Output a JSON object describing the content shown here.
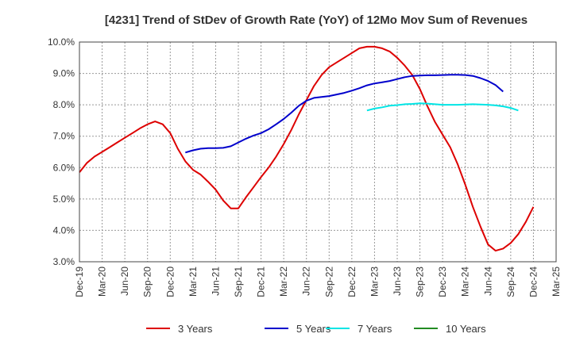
{
  "chart_data": {
    "type": "line",
    "title": "[4231]  Trend of StDev of Growth Rate (YoY) of 12Mo Mov Sum of Revenues",
    "xlabel": "",
    "ylabel": "",
    "ylim": [
      3.0,
      10.0
    ],
    "y_ticks": [
      "3.0%",
      "4.0%",
      "5.0%",
      "6.0%",
      "7.0%",
      "8.0%",
      "9.0%",
      "10.0%"
    ],
    "x_ticks": [
      "Dec-19",
      "Mar-20",
      "Jun-20",
      "Sep-20",
      "Dec-20",
      "Mar-21",
      "Jun-21",
      "Sep-21",
      "Dec-21",
      "Mar-22",
      "Jun-22",
      "Sep-22",
      "Dec-22",
      "Mar-23",
      "Jun-23",
      "Sep-23",
      "Dec-23",
      "Mar-24",
      "Jun-24",
      "Sep-24",
      "Dec-24",
      "Mar-25"
    ],
    "grid": true,
    "legend_position": "bottom",
    "series": [
      {
        "name": "3 Years",
        "color": "#dd0000",
        "start_index": 0,
        "values": [
          5.85,
          6.15,
          6.35,
          6.5,
          6.65,
          6.8,
          6.95,
          7.1,
          7.25,
          7.38,
          7.47,
          7.38,
          7.1,
          6.6,
          6.2,
          5.93,
          5.78,
          5.55,
          5.3,
          4.95,
          4.7,
          4.7,
          5.05,
          5.37,
          5.7,
          6.0,
          6.35,
          6.75,
          7.2,
          7.7,
          8.15,
          8.6,
          8.95,
          9.2,
          9.35,
          9.5,
          9.65,
          9.8,
          9.85,
          9.85,
          9.8,
          9.7,
          9.5,
          9.25,
          8.95,
          8.5,
          7.95,
          7.45,
          7.05,
          6.65,
          6.1,
          5.45,
          4.75,
          4.12,
          3.55,
          3.35,
          3.42,
          3.6,
          3.88,
          4.27,
          4.75
        ]
      },
      {
        "name": "5 Years",
        "color": "#0000cc",
        "start_index": 14,
        "values": [
          6.48,
          6.55,
          6.6,
          6.62,
          6.62,
          6.63,
          6.68,
          6.8,
          6.92,
          7.02,
          7.1,
          7.22,
          7.38,
          7.55,
          7.75,
          7.97,
          8.13,
          8.22,
          8.25,
          8.28,
          8.33,
          8.38,
          8.45,
          8.53,
          8.62,
          8.68,
          8.72,
          8.76,
          8.82,
          8.88,
          8.92,
          8.93,
          8.94,
          8.94,
          8.95,
          8.96,
          8.96,
          8.95,
          8.92,
          8.85,
          8.76,
          8.63,
          8.42
        ]
      },
      {
        "name": "7 Years",
        "color": "#00e5e5",
        "start_index": 38,
        "values": [
          7.82,
          7.88,
          7.92,
          7.97,
          7.99,
          8.02,
          8.03,
          8.05,
          8.04,
          8.02,
          8.0,
          8.0,
          8.0,
          8.01,
          8.02,
          8.01,
          8.0,
          7.98,
          7.95,
          7.9,
          7.82
        ]
      },
      {
        "name": "10 Years",
        "color": "#228b22",
        "start_index": 0,
        "values": []
      }
    ]
  }
}
